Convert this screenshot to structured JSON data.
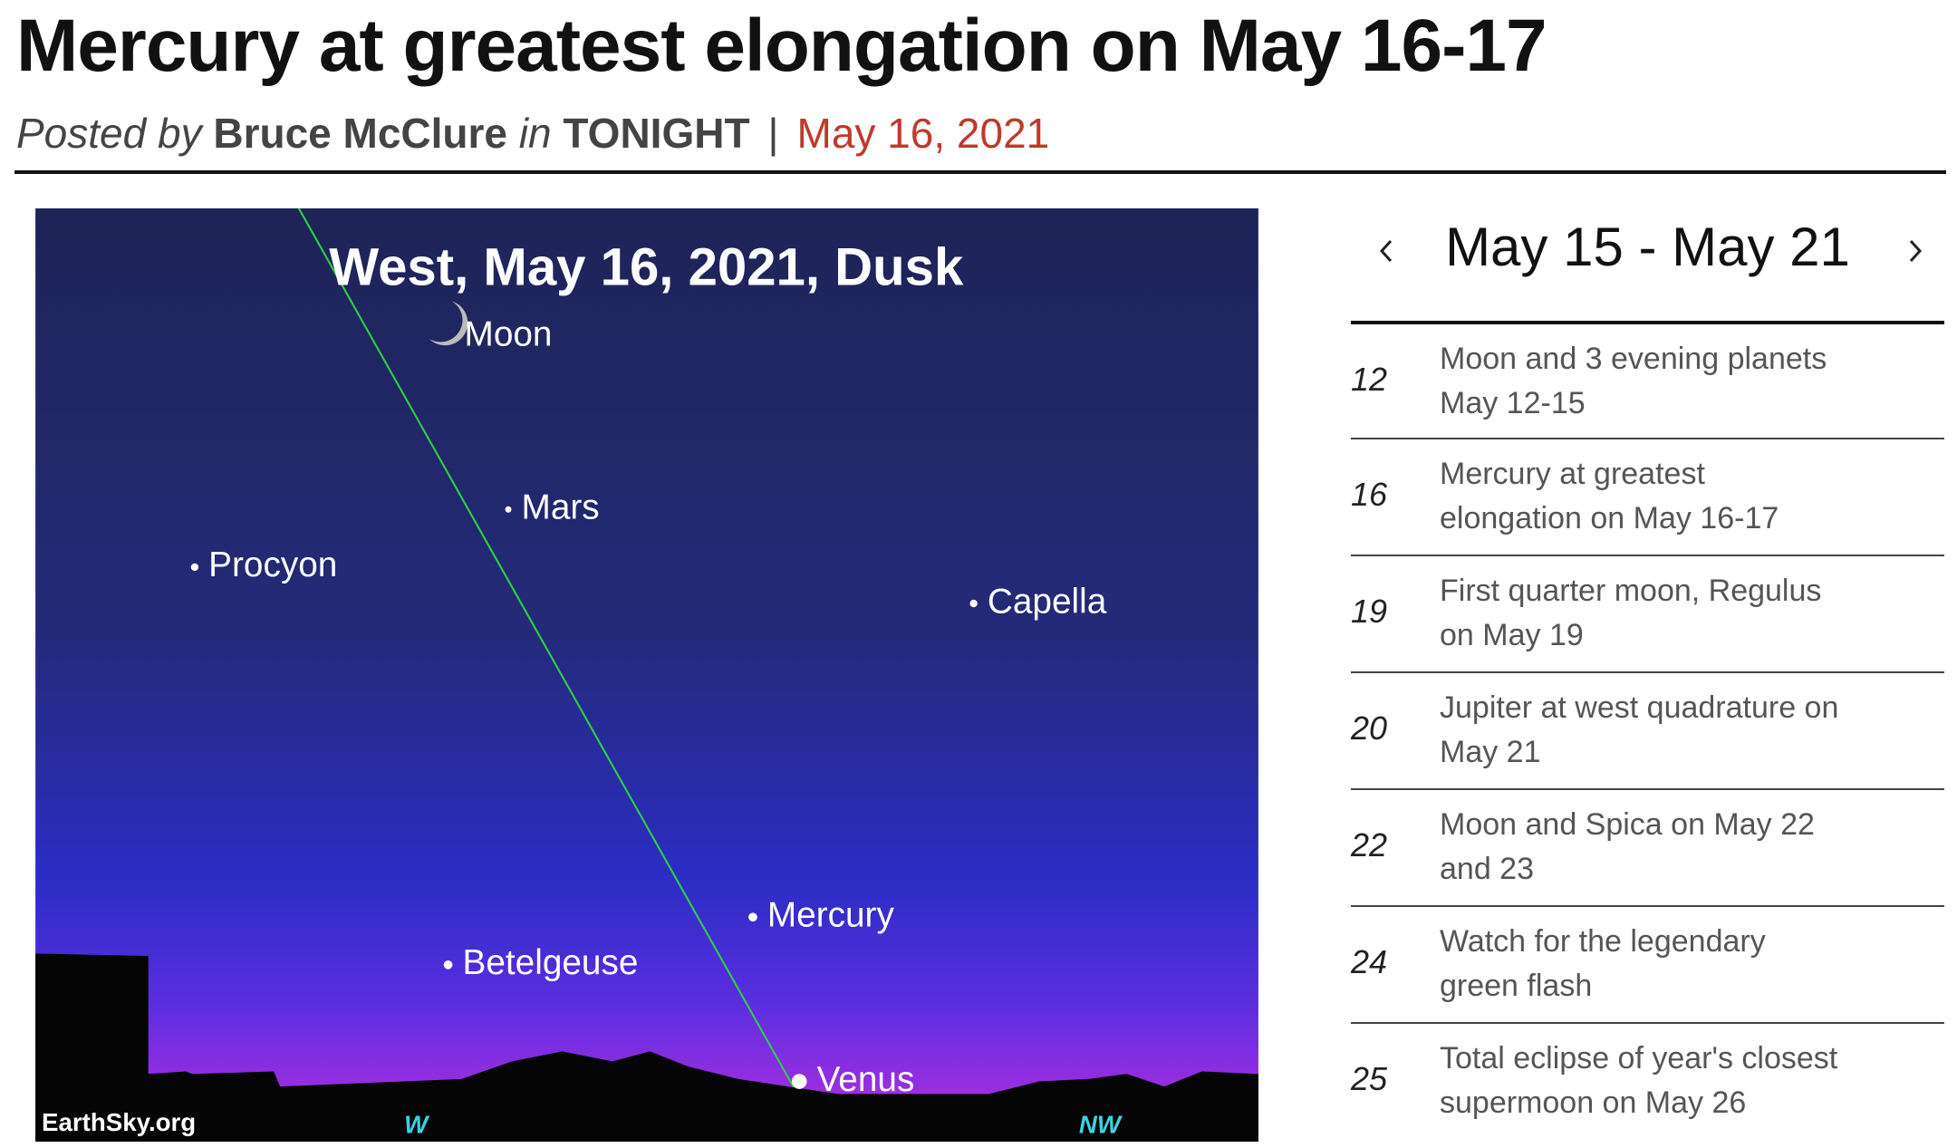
{
  "article": {
    "title": "Mercury at greatest elongation on May 16-17",
    "byline": {
      "posted": "Posted by",
      "author": "Bruce McClure",
      "in": "in",
      "category": "TONIGHT",
      "separator": "|",
      "date": "May 16, 2021"
    }
  },
  "sky_chart": {
    "title": "West, May 16, 2021, Dusk",
    "objects": [
      {
        "label": "Moon"
      },
      {
        "label": "Mars"
      },
      {
        "label": "Procyon"
      },
      {
        "label": "Capella"
      },
      {
        "label": "Mercury"
      },
      {
        "label": "Betelgeuse"
      },
      {
        "label": "Venus"
      }
    ],
    "credit": "EarthSky.org",
    "directions": [
      "W",
      "NW"
    ]
  },
  "sidebar": {
    "range": "May 15 - May 21",
    "items": [
      {
        "day": "12",
        "lines": [
          "Moon and 3 evening planets",
          "May 12-15"
        ]
      },
      {
        "day": "16",
        "lines": [
          "Mercury at greatest",
          "elongation on May 16-17"
        ]
      },
      {
        "day": "19",
        "lines": [
          "First quarter moon, Regulus",
          "on May 19"
        ]
      },
      {
        "day": "20",
        "lines": [
          "Jupiter at west quadrature on",
          "May 21"
        ]
      },
      {
        "day": "22",
        "lines": [
          "Moon and Spica on May 22",
          "and 23"
        ]
      },
      {
        "day": "24",
        "lines": [
          "Watch for the legendary",
          "green flash"
        ]
      },
      {
        "day": "25",
        "lines": [
          "Total eclipse of year's closest",
          "supermoon on May 26"
        ]
      }
    ]
  }
}
